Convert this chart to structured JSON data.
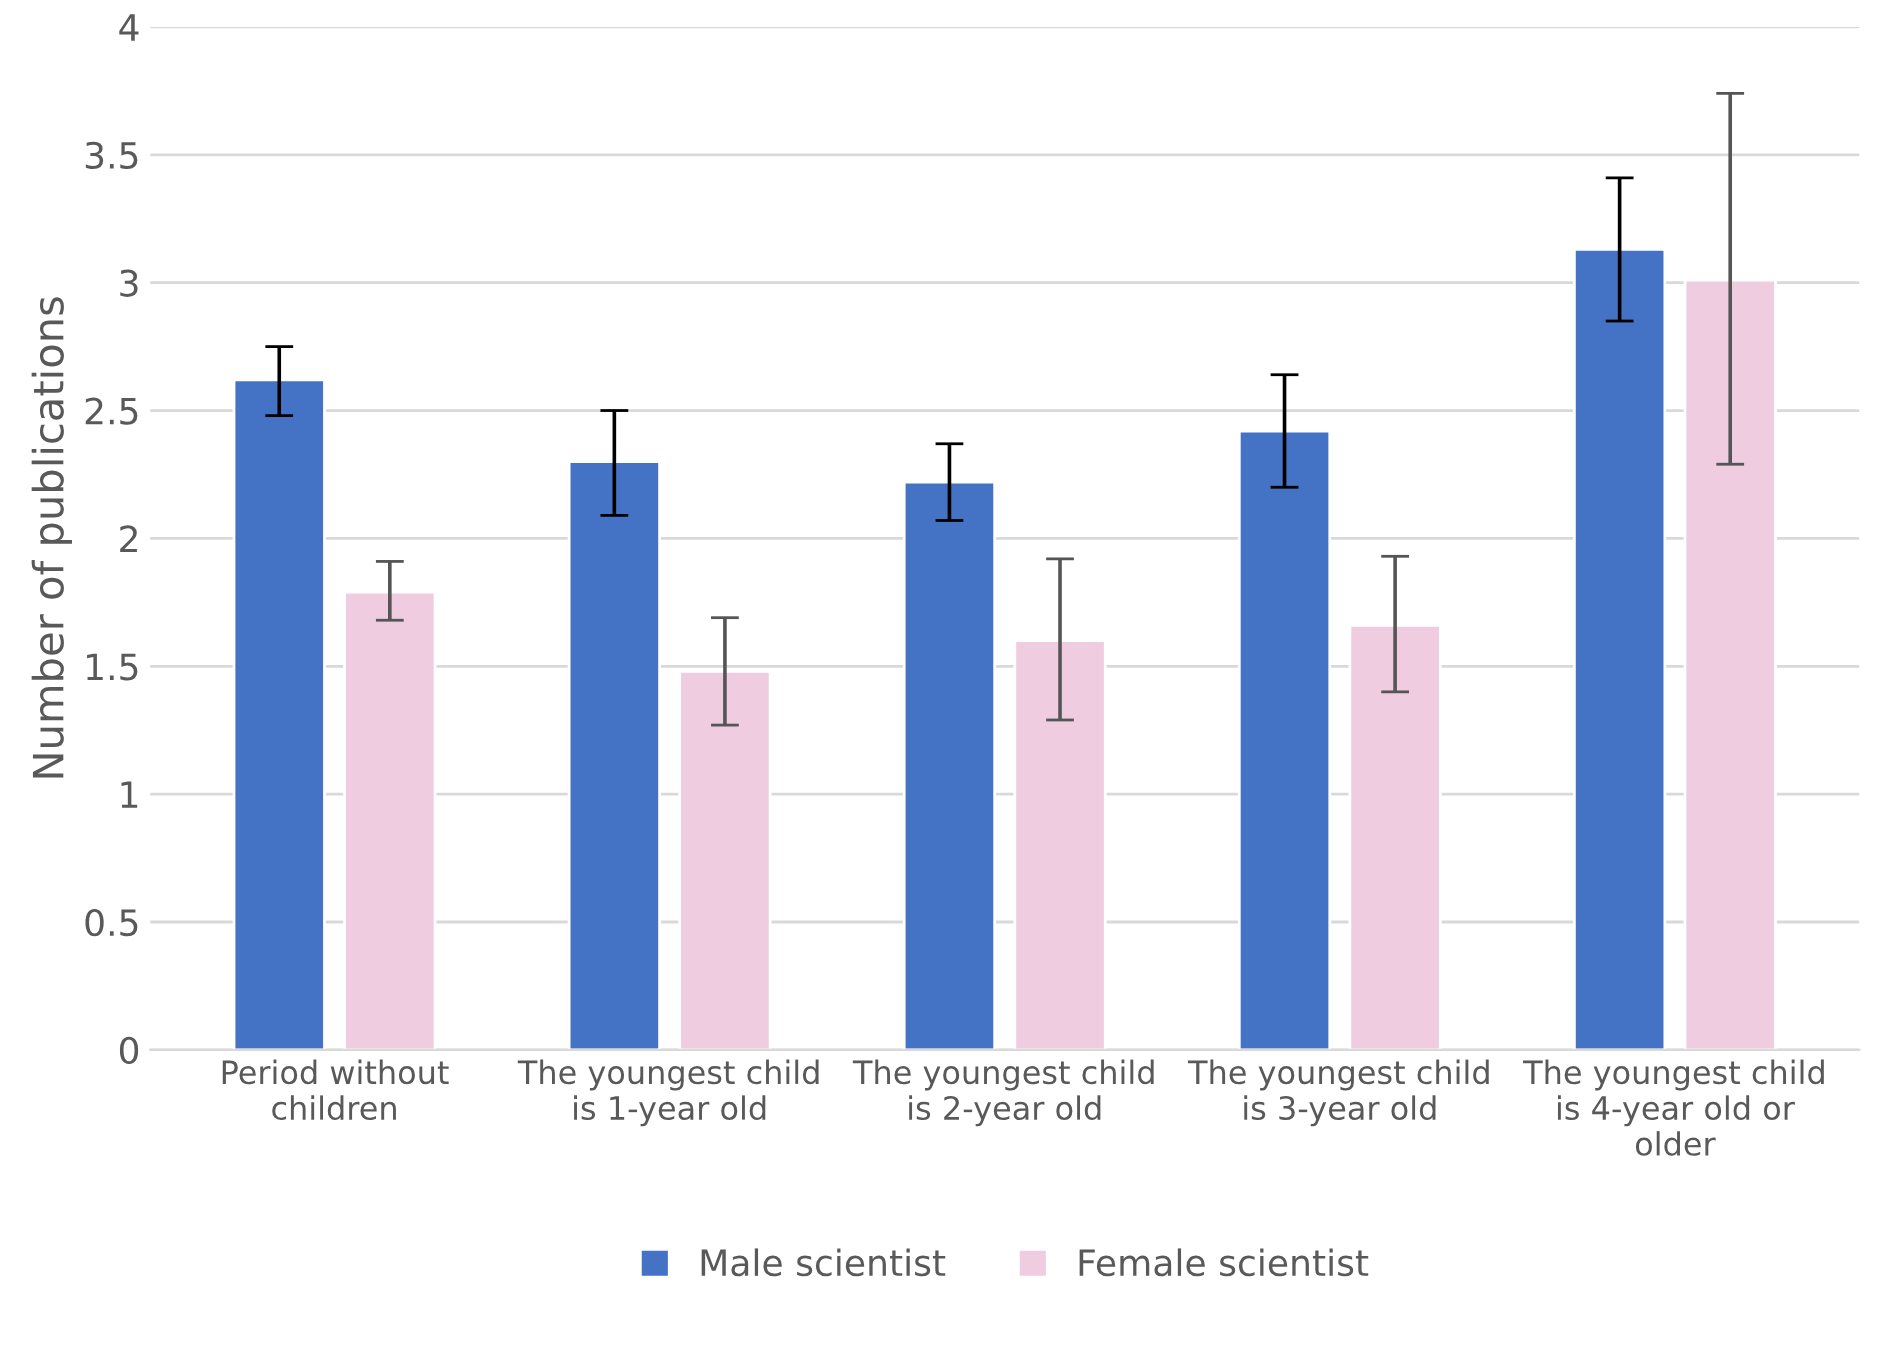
{
  "chart_data": {
    "type": "bar",
    "ylabel": "Number of publications",
    "categories": [
      "Period without\nchildren",
      "The youngest child\nis 1-year old",
      "The youngest child\nis 2-year old",
      "The youngest child\nis 3-year old",
      "The youngest child\nis 4-year old or\nolder"
    ],
    "series": [
      {
        "name": "Male scientist",
        "color": "#4472c4",
        "values": [
          2.62,
          2.3,
          2.22,
          2.42,
          3.13
        ],
        "errors": [
          [
            2.48,
            2.75
          ],
          [
            2.09,
            2.5
          ],
          [
            2.07,
            2.37
          ],
          [
            2.2,
            2.64
          ],
          [
            2.85,
            3.41
          ]
        ]
      },
      {
        "name": "Female scientist",
        "color": "#f0cce1",
        "values": [
          1.79,
          1.48,
          1.6,
          1.66,
          3.01
        ],
        "errors": [
          [
            1.68,
            1.91
          ],
          [
            1.27,
            1.69
          ],
          [
            1.29,
            1.92
          ],
          [
            1.4,
            1.93
          ],
          [
            2.29,
            3.74
          ]
        ]
      }
    ],
    "ylim": [
      0,
      4
    ],
    "yticks": [
      0,
      0.5,
      1,
      1.5,
      2,
      2.5,
      3,
      3.5,
      4
    ],
    "grid": "y",
    "legend": "bottom"
  }
}
